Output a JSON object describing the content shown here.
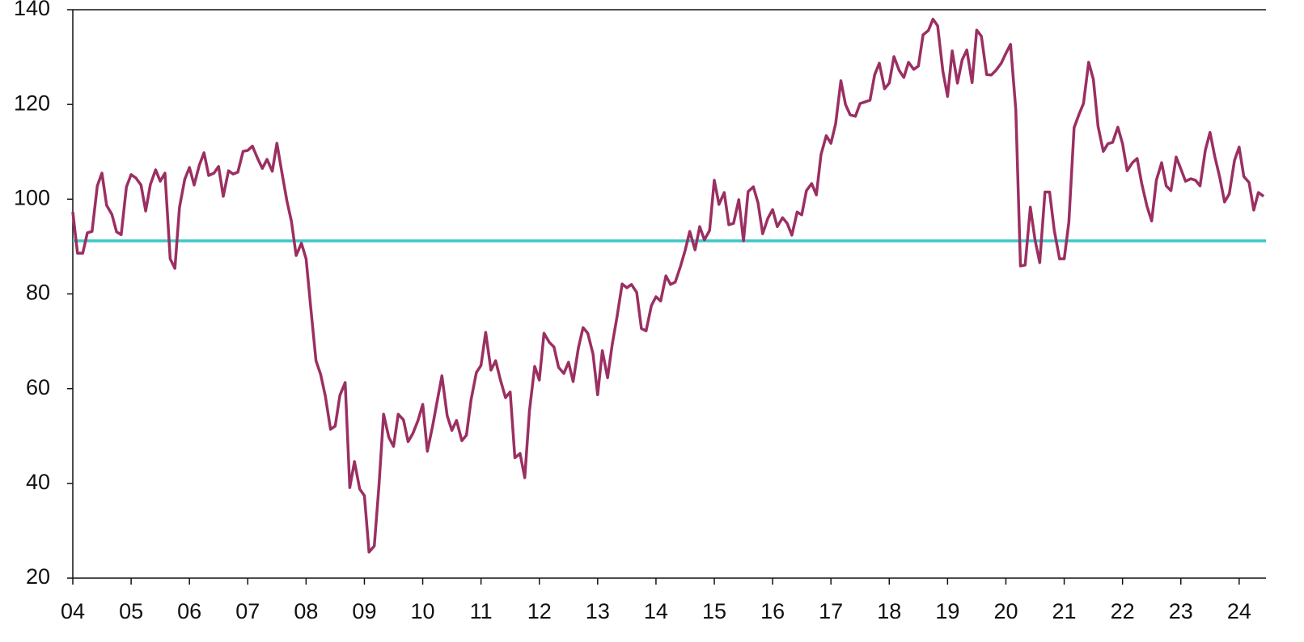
{
  "chart_data": {
    "type": "line",
    "x": [
      2004,
      2004.08,
      2004.17,
      2004.25,
      2004.33,
      2004.42,
      2004.5,
      2004.58,
      2004.67,
      2004.75,
      2004.83,
      2004.92,
      2005,
      2005.08,
      2005.17,
      2005.25,
      2005.33,
      2005.42,
      2005.5,
      2005.58,
      2005.67,
      2005.75,
      2005.83,
      2005.92,
      2006,
      2006.08,
      2006.17,
      2006.25,
      2006.33,
      2006.42,
      2006.5,
      2006.58,
      2006.67,
      2006.75,
      2006.83,
      2006.92,
      2007,
      2007.08,
      2007.17,
      2007.25,
      2007.33,
      2007.42,
      2007.5,
      2007.58,
      2007.67,
      2007.75,
      2007.83,
      2007.92,
      2008,
      2008.08,
      2008.17,
      2008.25,
      2008.33,
      2008.42,
      2008.5,
      2008.58,
      2008.67,
      2008.75,
      2008.83,
      2008.92,
      2009,
      2009.08,
      2009.17,
      2009.25,
      2009.33,
      2009.42,
      2009.5,
      2009.58,
      2009.67,
      2009.75,
      2009.83,
      2009.92,
      2010,
      2010.08,
      2010.17,
      2010.25,
      2010.33,
      2010.42,
      2010.5,
      2010.58,
      2010.67,
      2010.75,
      2010.83,
      2010.92,
      2011,
      2011.08,
      2011.17,
      2011.25,
      2011.33,
      2011.42,
      2011.5,
      2011.58,
      2011.67,
      2011.75,
      2011.83,
      2011.92,
      2012,
      2012.08,
      2012.17,
      2012.25,
      2012.33,
      2012.42,
      2012.5,
      2012.58,
      2012.67,
      2012.75,
      2012.83,
      2012.92,
      2013,
      2013.08,
      2013.17,
      2013.25,
      2013.33,
      2013.42,
      2013.5,
      2013.58,
      2013.67,
      2013.75,
      2013.83,
      2013.92,
      2014,
      2014.08,
      2014.17,
      2014.25,
      2014.33,
      2014.42,
      2014.5,
      2014.58,
      2014.67,
      2014.75,
      2014.83,
      2014.92,
      2015,
      2015.08,
      2015.17,
      2015.25,
      2015.33,
      2015.42,
      2015.5,
      2015.58,
      2015.67,
      2015.75,
      2015.83,
      2015.92,
      2016,
      2016.08,
      2016.17,
      2016.25,
      2016.33,
      2016.42,
      2016.5,
      2016.58,
      2016.67,
      2016.75,
      2016.83,
      2016.92,
      2017,
      2017.08,
      2017.17,
      2017.25,
      2017.33,
      2017.42,
      2017.5,
      2017.58,
      2017.67,
      2017.75,
      2017.83,
      2017.92,
      2018,
      2018.08,
      2018.17,
      2018.25,
      2018.33,
      2018.42,
      2018.5,
      2018.58,
      2018.67,
      2018.75,
      2018.83,
      2018.92,
      2019,
      2019.08,
      2019.17,
      2019.25,
      2019.33,
      2019.42,
      2019.5,
      2019.58,
      2019.67,
      2019.75,
      2019.83,
      2019.92,
      2020,
      2020.08,
      2020.17,
      2020.25,
      2020.33,
      2020.42,
      2020.5,
      2020.58,
      2020.67,
      2020.75,
      2020.83,
      2020.92,
      2021,
      2021.08,
      2021.17,
      2021.25,
      2021.33,
      2021.42,
      2021.5,
      2021.58,
      2021.67,
      2021.75,
      2021.83,
      2021.92,
      2022,
      2022.08,
      2022.17,
      2022.25,
      2022.33,
      2022.42,
      2022.5,
      2022.58,
      2022.67,
      2022.75,
      2022.83,
      2022.92,
      2023,
      2023.08,
      2023.17,
      2023.25,
      2023.33,
      2023.42,
      2023.5,
      2023.58,
      2023.67,
      2023.75,
      2023.83,
      2023.92,
      2024,
      2024.08,
      2024.17,
      2024.25,
      2024.33,
      2024.42
    ],
    "series": [
      {
        "color": "#9b2f62",
        "values": [
          97.3,
          88.6,
          88.6,
          92.9,
          93.2,
          102.8,
          105.5,
          98.7,
          96.8,
          93.1,
          92.5,
          102.6,
          105.2,
          104.5,
          103.0,
          97.5,
          103.1,
          106.2,
          103.8,
          105.5,
          87.4,
          85.4,
          98.3,
          104.2,
          106.7,
          103.0,
          107.2,
          109.8,
          105.0,
          105.5,
          106.9,
          100.6,
          106.0,
          105.3,
          105.7,
          110.1,
          110.3,
          111.2,
          108.6,
          106.5,
          108.4,
          105.9,
          111.8,
          106.0,
          99.7,
          95.3,
          88.1,
          90.7,
          87.4,
          77.2,
          65.9,
          63.0,
          58.4,
          51.4,
          52.1,
          58.6,
          61.3,
          39.1,
          44.6,
          38.8,
          37.4,
          25.5,
          26.8,
          39.6,
          54.6,
          49.7,
          47.8,
          54.6,
          53.4,
          48.8,
          50.5,
          53.3,
          56.7,
          46.8,
          52.1,
          57.5,
          62.7,
          54.3,
          51.2,
          53.3,
          49.0,
          50.2,
          57.7,
          63.4,
          64.9,
          71.9,
          63.9,
          65.9,
          62.0,
          58.1,
          59.3,
          45.4,
          46.3,
          41.2,
          55.3,
          64.7,
          61.8,
          71.7,
          69.8,
          68.8,
          64.5,
          63.2,
          65.6,
          61.5,
          68.6,
          72.9,
          71.7,
          67.3,
          58.7,
          68.0,
          62.3,
          69.3,
          75.0,
          82.1,
          81.3,
          82.0,
          80.3,
          72.7,
          72.2,
          77.5,
          79.4,
          78.5,
          83.8,
          82.0,
          82.5,
          85.8,
          89.2,
          93.2,
          89.3,
          94.2,
          91.4,
          93.4,
          104.0,
          98.9,
          101.4,
          94.6,
          94.9,
          99.9,
          91.2,
          101.6,
          102.6,
          99.2,
          92.7,
          96.0,
          97.8,
          94.2,
          96.1,
          94.9,
          92.4,
          97.3,
          96.7,
          101.8,
          103.3,
          100.9,
          109.4,
          113.4,
          111.8,
          115.9,
          125.0,
          120.0,
          117.8,
          117.5,
          120.2,
          120.5,
          120.9,
          126.3,
          128.7,
          123.3,
          124.5,
          130.1,
          127.2,
          125.7,
          128.9,
          127.4,
          128.1,
          134.7,
          135.6,
          138.0,
          136.6,
          127.0,
          121.7,
          131.3,
          124.5,
          129.4,
          131.5,
          124.6,
          135.7,
          134.4,
          126.3,
          126.2,
          127.2,
          128.7,
          130.8,
          132.7,
          119.0,
          85.9,
          86.1,
          98.3,
          91.4,
          86.6,
          101.5,
          101.5,
          93.4,
          87.4,
          87.4,
          95.1,
          115.1,
          117.8,
          120.2,
          128.9,
          125.3,
          115.4,
          110.1,
          111.7,
          112.0,
          115.2,
          111.7,
          106.0,
          107.7,
          108.6,
          103.3,
          98.5,
          95.4,
          104.0,
          107.7,
          102.8,
          101.8,
          108.9,
          106.4,
          103.8,
          104.3,
          104.0,
          102.8,
          110.3,
          114.1,
          109.1,
          104.5,
          99.4,
          101.1,
          108.2,
          111.0,
          104.8,
          103.5,
          97.7,
          101.4,
          100.6
        ]
      }
    ],
    "reference_line": {
      "value": 91.2,
      "color": "#3cc8c8"
    },
    "xlim": [
      2004,
      2024.46
    ],
    "xticks": [
      {
        "value": 2004,
        "label": "04"
      },
      {
        "value": 2005,
        "label": "05"
      },
      {
        "value": 2006,
        "label": "06"
      },
      {
        "value": 2007,
        "label": "07"
      },
      {
        "value": 2008,
        "label": "08"
      },
      {
        "value": 2009,
        "label": "09"
      },
      {
        "value": 2010,
        "label": "10"
      },
      {
        "value": 2011,
        "label": "11"
      },
      {
        "value": 2012,
        "label": "12"
      },
      {
        "value": 2013,
        "label": "13"
      },
      {
        "value": 2014,
        "label": "14"
      },
      {
        "value": 2015,
        "label": "15"
      },
      {
        "value": 2016,
        "label": "16"
      },
      {
        "value": 2017,
        "label": "17"
      },
      {
        "value": 2018,
        "label": "18"
      },
      {
        "value": 2019,
        "label": "19"
      },
      {
        "value": 2020,
        "label": "20"
      },
      {
        "value": 2021,
        "label": "21"
      },
      {
        "value": 2022,
        "label": "22"
      },
      {
        "value": 2023,
        "label": "23"
      },
      {
        "value": 2024,
        "label": "24"
      }
    ],
    "ylim": [
      20,
      140
    ],
    "yticks": [
      20,
      40,
      60,
      80,
      100,
      120,
      140
    ],
    "grid": false
  }
}
